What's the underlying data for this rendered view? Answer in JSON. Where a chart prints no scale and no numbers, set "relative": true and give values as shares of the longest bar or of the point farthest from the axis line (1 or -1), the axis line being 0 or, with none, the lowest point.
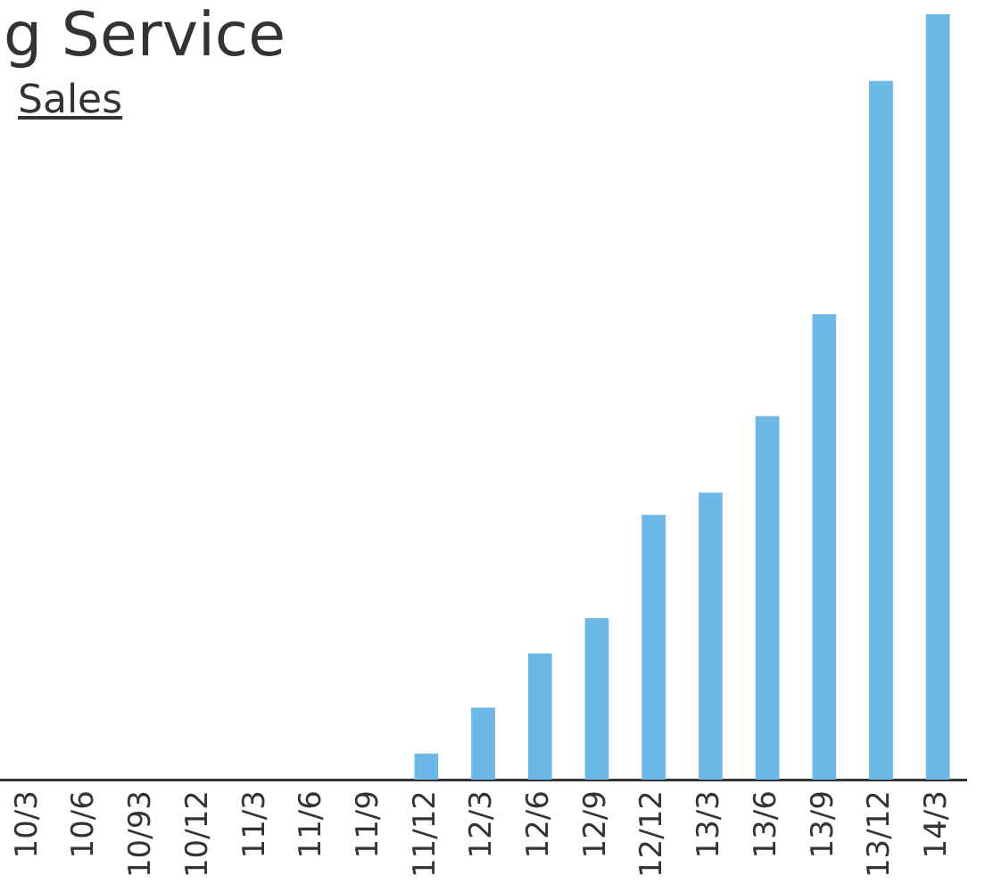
{
  "chart_data": {
    "type": "bar",
    "title": "g Service",
    "subtitle": "Sales",
    "relative": true,
    "grid": false,
    "legend": false,
    "categories": [
      "10/3",
      "10/6",
      "10/93",
      "10/12",
      "11/3",
      "11/6",
      "11/9",
      "11/12",
      "12/3",
      "12/6",
      "12/9",
      "12/12",
      "13/3",
      "13/6",
      "13/9",
      "13/12",
      "14/3"
    ],
    "values": [
      0,
      0,
      0,
      0,
      0,
      0,
      0,
      0.034,
      0.094,
      0.165,
      0.211,
      0.346,
      0.375,
      0.475,
      0.608,
      0.913,
      1
    ],
    "color": "#6cb9e8"
  }
}
